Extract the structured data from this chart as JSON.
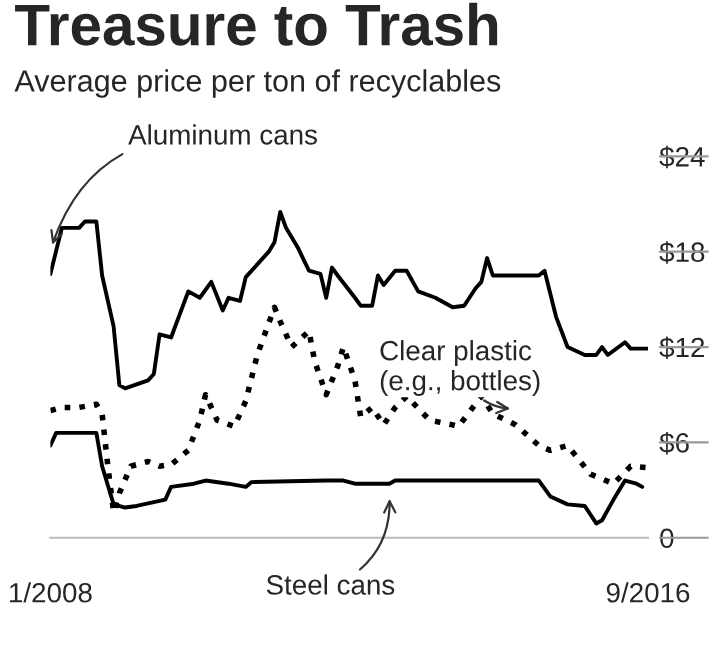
{
  "chart_data": {
    "type": "line",
    "title": "Treasure to Trash",
    "subtitle": "Average price per ton of recyclables",
    "x": [
      "2008-01",
      "2008-03",
      "2008-06",
      "2008-07",
      "2008-09",
      "2008-10",
      "2008-12",
      "2009-01",
      "2009-02",
      "2009-06",
      "2009-07",
      "2009-08",
      "2009-10",
      "2010-01",
      "2010-03",
      "2010-05",
      "2010-07",
      "2010-08",
      "2010-10",
      "2010-11",
      "2011-03",
      "2011-04",
      "2011-05",
      "2011-06",
      "2011-08",
      "2011-10",
      "2011-12",
      "2012-01",
      "2012-02",
      "2012-03",
      "2012-06",
      "2012-07",
      "2012-09",
      "2012-10",
      "2012-11",
      "2013-01",
      "2013-03",
      "2013-05",
      "2013-08",
      "2013-11",
      "2014-01",
      "2014-03",
      "2014-04",
      "2014-05",
      "2014-06",
      "2015-02",
      "2015-03",
      "2015-05",
      "2015-07",
      "2015-10",
      "2015-12",
      "2016-01",
      "2016-02",
      "2016-05",
      "2016-06",
      "2016-09"
    ],
    "series": [
      {
        "name": "Aluminum cans",
        "color": "#000000",
        "line_style": "solid",
        "values": [
          16.6,
          19.5,
          19.5,
          19.9,
          19.9,
          16.5,
          13.3,
          9.6,
          9.4,
          9.9,
          10.3,
          12.8,
          12.6,
          15.5,
          15.1,
          16.1,
          14.3,
          15.1,
          14.9,
          16.4,
          18.0,
          18.6,
          20.5,
          19.5,
          18.3,
          16.8,
          16.6,
          15.1,
          17.0,
          16.5,
          15.1,
          14.6,
          14.6,
          16.5,
          15.9,
          16.8,
          16.8,
          15.5,
          15.1,
          14.5,
          14.6,
          15.7,
          16.1,
          17.6,
          16.5,
          16.5,
          16.8,
          13.9,
          12.0,
          11.5,
          11.5,
          12.0,
          11.5,
          12.3,
          11.9,
          11.9
        ]
      },
      {
        "name": "Clear plastic\n(e.g., bottles)",
        "color": "#000000",
        "line_style": "dotted",
        "x": [
          "2008-01",
          "2008-03",
          "2008-06",
          "2008-09",
          "2008-10",
          "2008-11",
          "2008-12",
          "2009-01",
          "2009-03",
          "2009-06",
          "2009-08",
          "2009-10",
          "2010-01",
          "2010-03",
          "2010-04",
          "2010-06",
          "2010-09",
          "2010-11",
          "2011-01",
          "2011-04",
          "2011-05",
          "2011-07",
          "2011-10",
          "2011-11",
          "2012-01",
          "2012-03",
          "2012-04",
          "2012-06",
          "2012-07",
          "2012-09",
          "2012-11",
          "2013-01",
          "2013-03",
          "2013-07",
          "2013-11",
          "2013-12",
          "2014-04",
          "2014-06",
          "2014-10",
          "2015-02",
          "2015-04",
          "2015-07",
          "2015-11",
          "2016-03",
          "2016-06",
          "2016-09"
        ],
        "values": [
          8.0,
          8.2,
          8.2,
          8.4,
          7.8,
          4.5,
          1.6,
          2.8,
          4.5,
          4.8,
          4.5,
          4.6,
          5.5,
          7.4,
          9.0,
          7.4,
          7.0,
          8.6,
          11.5,
          14.5,
          13.6,
          12.0,
          13.0,
          11.1,
          9.0,
          10.8,
          12.0,
          9.9,
          7.6,
          8.2,
          7.1,
          8.2,
          8.9,
          7.4,
          7.1,
          7.0,
          8.9,
          7.8,
          7.1,
          5.8,
          5.5,
          5.8,
          4.0,
          3.4,
          4.5,
          4.4
        ]
      },
      {
        "name": "Steel cans",
        "color": "#000000",
        "line_style": "solid",
        "x": [
          "2008-01",
          "2008-02",
          "2008-09",
          "2008-10",
          "2008-12",
          "2009-02",
          "2009-04",
          "2009-09",
          "2009-10",
          "2010-02",
          "2010-04",
          "2010-08",
          "2010-11",
          "2010-12",
          "2012-01",
          "2012-04",
          "2012-06",
          "2012-12",
          "2013-01",
          "2015-02",
          "2015-04",
          "2015-07",
          "2015-10",
          "2015-12",
          "2016-01",
          "2016-03",
          "2016-05",
          "2016-07",
          "2016-08"
        ],
        "values": [
          5.8,
          6.6,
          6.6,
          4.5,
          2.1,
          1.9,
          2.0,
          2.4,
          3.2,
          3.4,
          3.6,
          3.4,
          3.2,
          3.5,
          3.6,
          3.6,
          3.4,
          3.4,
          3.6,
          3.6,
          2.6,
          2.1,
          2.0,
          0.9,
          1.1,
          2.4,
          3.6,
          3.4,
          3.2
        ]
      }
    ],
    "ylim": [
      0,
      24
    ],
    "yticks": [
      {
        "value": 0,
        "label": "0"
      },
      {
        "value": 6,
        "label": "$6"
      },
      {
        "value": 12,
        "label": "$12"
      },
      {
        "value": 18,
        "label": "$18"
      },
      {
        "value": 24,
        "label": "$24"
      }
    ],
    "xlim": [
      "2008-01",
      "2016-09"
    ],
    "xticks": [
      {
        "value": "2008-01",
        "label": "1/2008"
      },
      {
        "value": "2016-09",
        "label": "9/2016"
      }
    ],
    "grid": false
  }
}
